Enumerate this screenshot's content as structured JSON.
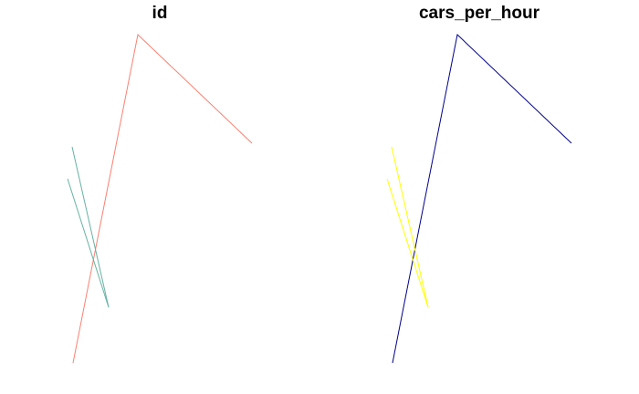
{
  "chart_data": [
    {
      "type": "line",
      "title": "id",
      "xlabel": "",
      "ylabel": "",
      "grid": false,
      "legend": "none",
      "series": [
        {
          "color": "#fa8072",
          "points": [
            [
              80,
              398
            ],
            [
              151,
              38
            ],
            [
              276,
              157
            ]
          ]
        },
        {
          "color": "#66b2a2",
          "points": [
            [
              79,
              161
            ],
            [
              119,
              337
            ]
          ]
        },
        {
          "color": "#66b2a2",
          "points": [
            [
              74,
              196
            ],
            [
              119,
              337
            ]
          ]
        }
      ]
    },
    {
      "type": "line",
      "title": "cars_per_hour",
      "xlabel": "",
      "ylabel": "",
      "grid": false,
      "legend": "none",
      "series": [
        {
          "color": "#00008b",
          "points": [
            [
              80,
              398
            ],
            [
              151,
              38
            ],
            [
              276,
              157
            ]
          ]
        },
        {
          "color": "#ffff00",
          "points": [
            [
              79,
              161
            ],
            [
              119,
              337
            ]
          ]
        },
        {
          "color": "#ffff00",
          "points": [
            [
              74,
              196
            ],
            [
              119,
              337
            ]
          ]
        }
      ]
    }
  ]
}
